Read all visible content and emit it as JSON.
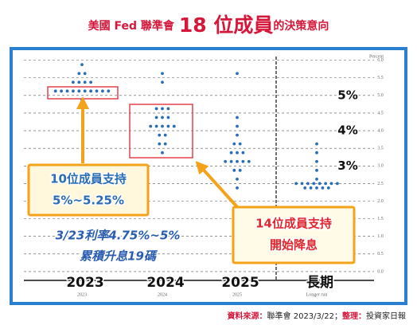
{
  "title_parts": [
    "美國 Fed 聯準會",
    "18 位成員",
    "的決策意向"
  ],
  "chart_data": {
    "type": "dot_plot",
    "y_label": "Percent",
    "categories": [
      "2023",
      "2024",
      "2025",
      "Longer run"
    ],
    "category_labels": [
      "2023",
      "2024",
      "2025",
      "長期"
    ],
    "color": "#2a6db5",
    "ylim": [
      -0.25,
      6.15
    ],
    "yticks": [
      {
        "value": 6,
        "label": "6.0"
      },
      {
        "value": 5.5,
        "label": "5.5"
      },
      {
        "value": 5,
        "label": "5.0"
      },
      {
        "value": 4.5,
        "label": "4.5"
      },
      {
        "value": 4,
        "label": "4.0"
      },
      {
        "value": 3.5,
        "label": "3.5"
      },
      {
        "value": 3,
        "label": "3.0"
      },
      {
        "value": 2.5,
        "label": "2.5"
      },
      {
        "value": 2,
        "label": "2.0"
      },
      {
        "value": 1.5,
        "label": "1.5"
      },
      {
        "value": 1,
        "label": "1.0"
      },
      {
        "value": 0.5,
        "label": "0.5"
      },
      {
        "value": 0,
        "label": "0.0"
      }
    ],
    "grid": true,
    "dots": [
      [
        {
          "rate": 5.875,
          "count": 1
        },
        {
          "rate": 5.625,
          "count": 2
        },
        {
          "rate": 5.375,
          "count": 4
        },
        {
          "rate": 5.125,
          "count": 10
        },
        {
          "rate": 4.875,
          "count": 1
        }
      ],
      [
        {
          "rate": 5.625,
          "count": 1
        },
        {
          "rate": 5.375,
          "count": 1
        },
        {
          "rate": 4.625,
          "count": 3
        },
        {
          "rate": 4.375,
          "count": 3
        },
        {
          "rate": 4.125,
          "count": 5
        },
        {
          "rate": 3.875,
          "count": 2
        },
        {
          "rate": 3.625,
          "count": 2
        },
        {
          "rate": 3.375,
          "count": 1
        }
      ],
      [
        {
          "rate": 5.625,
          "count": 1
        },
        {
          "rate": 4.375,
          "count": 1
        },
        {
          "rate": 4.125,
          "count": 1
        },
        {
          "rate": 3.875,
          "count": 1
        },
        {
          "rate": 3.625,
          "count": 2
        },
        {
          "rate": 3.375,
          "count": 3
        },
        {
          "rate": 3.125,
          "count": 5
        },
        {
          "rate": 2.875,
          "count": 2
        },
        {
          "rate": 2.625,
          "count": 1
        },
        {
          "rate": 2.375,
          "count": 1
        }
      ],
      [
        {
          "rate": 3.625,
          "count": 1
        },
        {
          "rate": 3.375,
          "count": 1
        },
        {
          "rate": 3.125,
          "count": 1
        },
        {
          "rate": 2.875,
          "count": 1
        },
        {
          "rate": 2.625,
          "count": 1
        },
        {
          "rate": 2.5,
          "count": 8
        },
        {
          "rate": 2.375,
          "count": 5
        }
      ]
    ],
    "rate_labels": [
      {
        "value": 5,
        "label": "5%"
      },
      {
        "value": 4,
        "label": "4%"
      },
      {
        "value": 3,
        "label": "3%"
      }
    ],
    "annotations": [
      {
        "lines": [
          "10位成員支持",
          "5%~5.25%"
        ]
      },
      {
        "lines": [
          "14位成員支持",
          "開始降息"
        ]
      },
      {
        "lines": [
          "3/23利率4.75%~5%",
          "累積升息19碼"
        ]
      }
    ]
  },
  "source": [
    "資料來源：",
    "聯準會 2023/3/22；",
    "整理：",
    "投資家日報"
  ]
}
